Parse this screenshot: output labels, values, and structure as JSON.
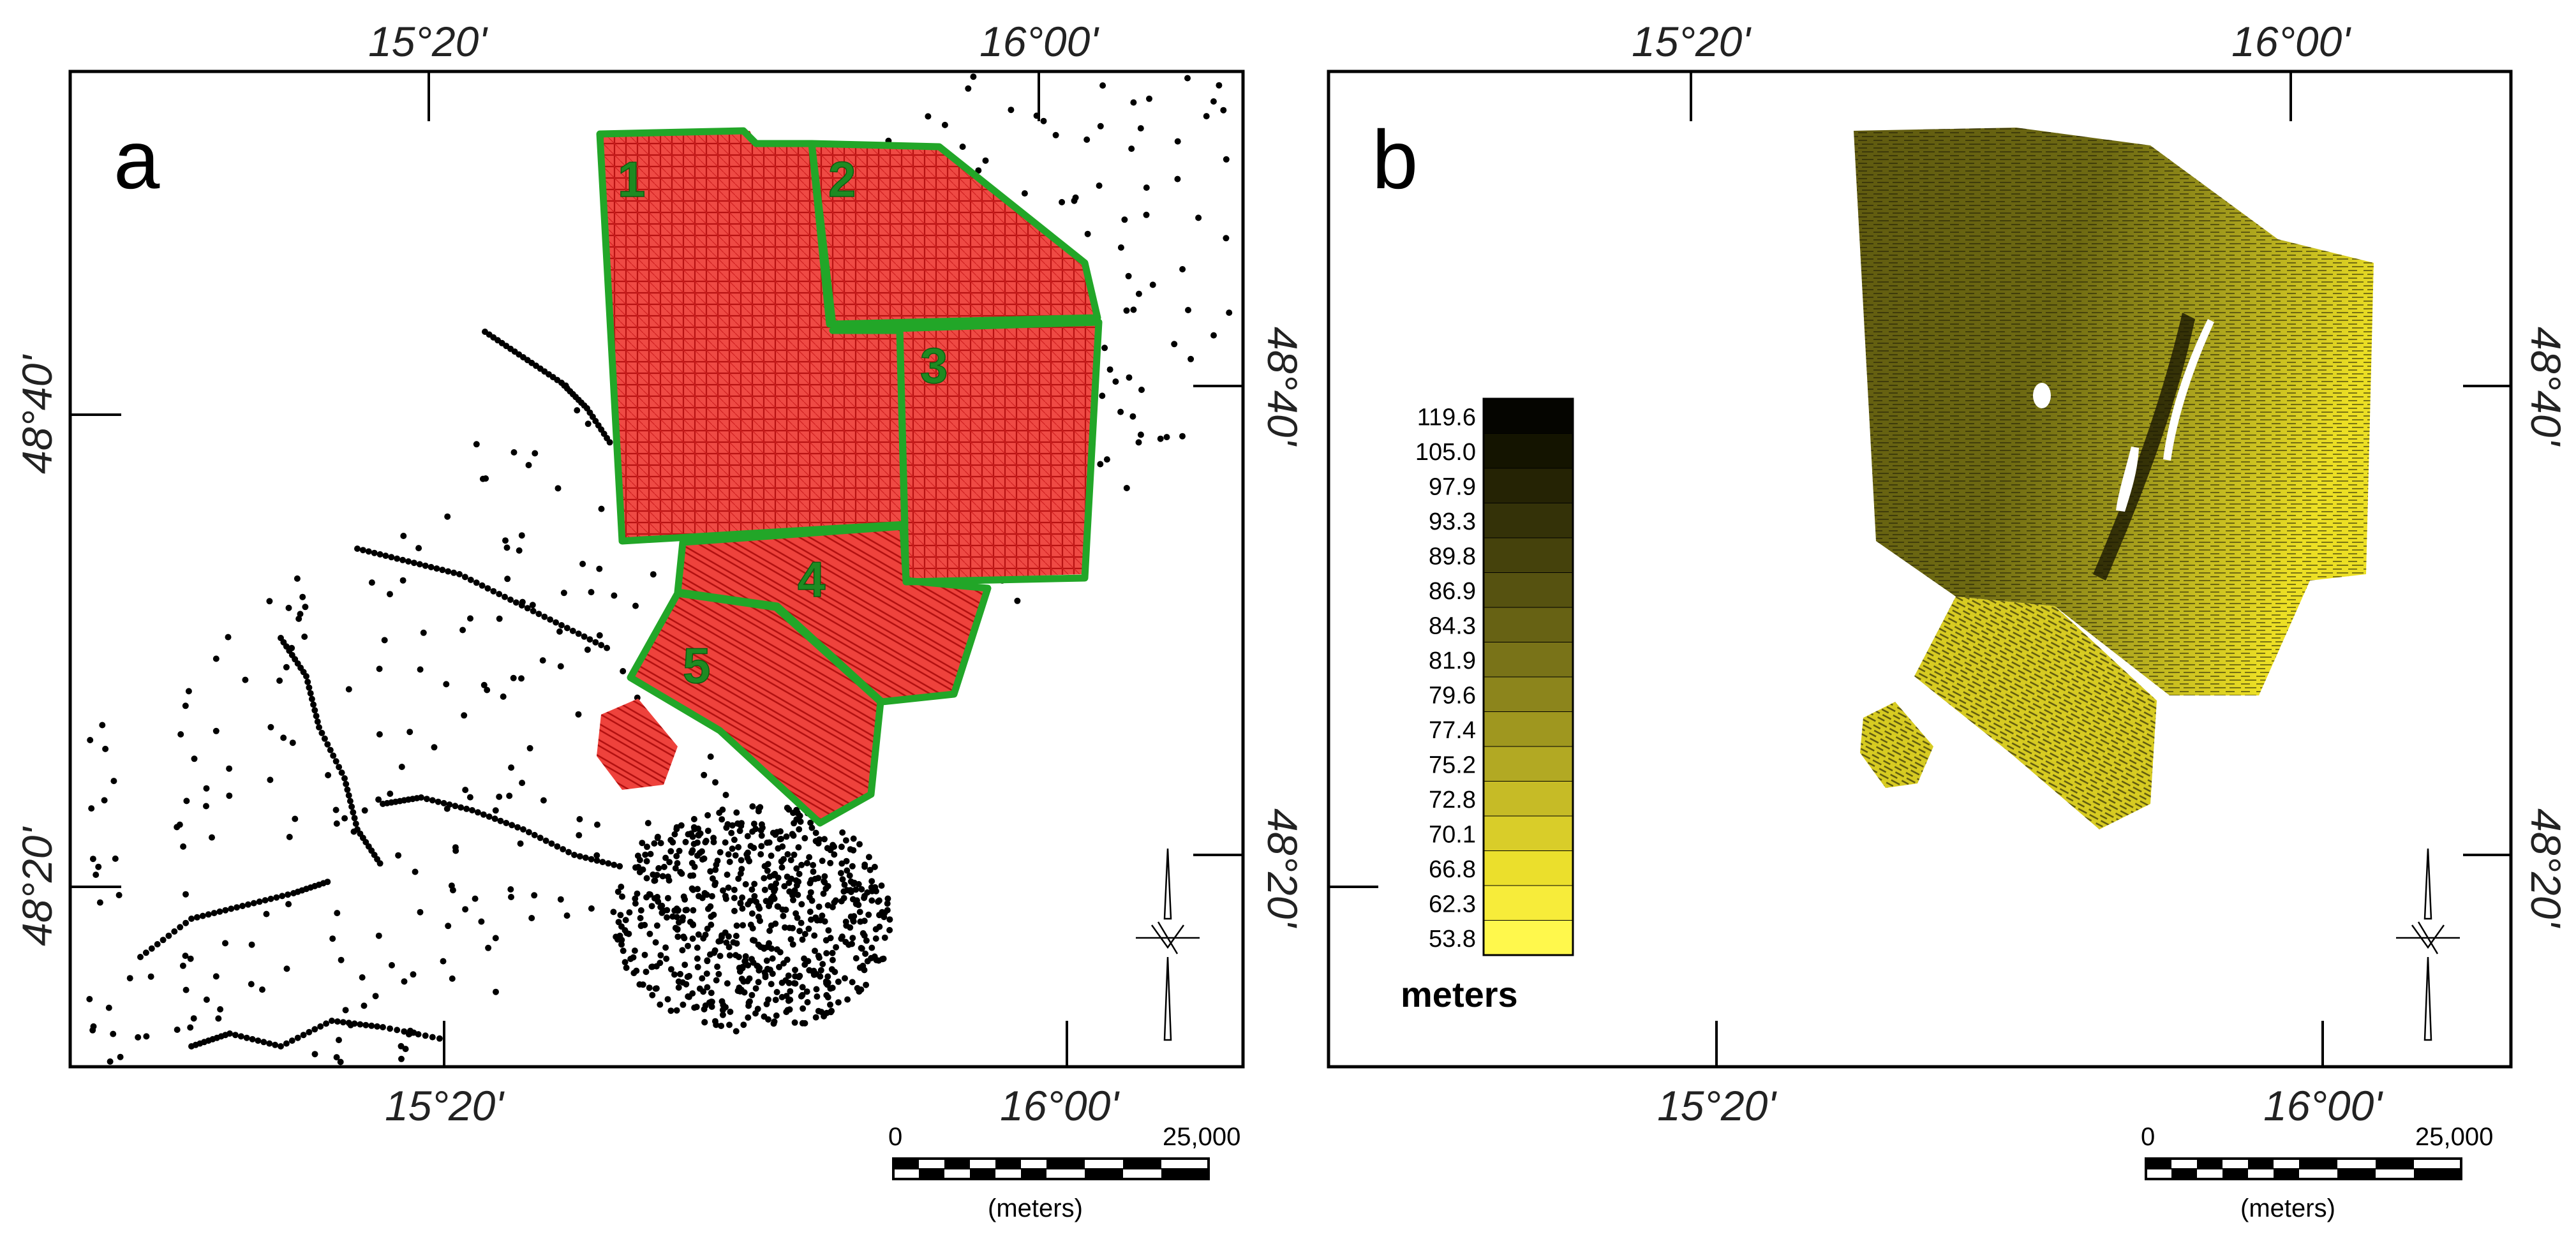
{
  "panels": [
    {
      "letter": "a",
      "top_lon_labels": [
        "15°20'",
        "16°00'"
      ],
      "bottom_lon_labels": [
        "15°20'",
        "16°00'"
      ],
      "left_lat_labels": [
        "48°40'",
        "48°20'"
      ],
      "right_lat_labels": [
        "48°40'",
        "48°20'"
      ],
      "areas": [
        "1",
        "2",
        "3",
        "4",
        "5"
      ],
      "scale_bar": {
        "start": "0",
        "end": "25,000",
        "unit": "(meters)"
      }
    },
    {
      "letter": "b",
      "top_lon_labels": [
        "15°20'",
        "16°00'"
      ],
      "bottom_lon_labels": [
        "15°20'",
        "16°00'"
      ],
      "left_lat_labels": [],
      "right_lat_labels": [
        "48°40'",
        "48°20'"
      ],
      "legend": {
        "values": [
          "119.6",
          "105.0",
          "97.9",
          "93.3",
          "89.8",
          "86.9",
          "84.3",
          "81.9",
          "79.6",
          "77.4",
          "75.2",
          "72.8",
          "70.1",
          "66.8",
          "62.3",
          "53.8"
        ],
        "colors": [
          "#050500",
          "#141400",
          "#252304",
          "#343208",
          "#45420c",
          "#565210",
          "#676214",
          "#797318",
          "#8c851c",
          "#9f971f",
          "#b2a923",
          "#c6bb26",
          "#d9cd29",
          "#ebdf2c",
          "#f7ec3a",
          "#fff84c"
        ],
        "unit": "meters"
      },
      "scale_bar": {
        "start": "0",
        "end": "25,000",
        "unit": "(meters)"
      }
    }
  ],
  "colors": {
    "survey_fill": "#e8302e",
    "survey_line": "#b00000",
    "boundary": "#22a628",
    "area_label": "#1e8a22",
    "stations": "#000000",
    "frame": "#000000"
  }
}
